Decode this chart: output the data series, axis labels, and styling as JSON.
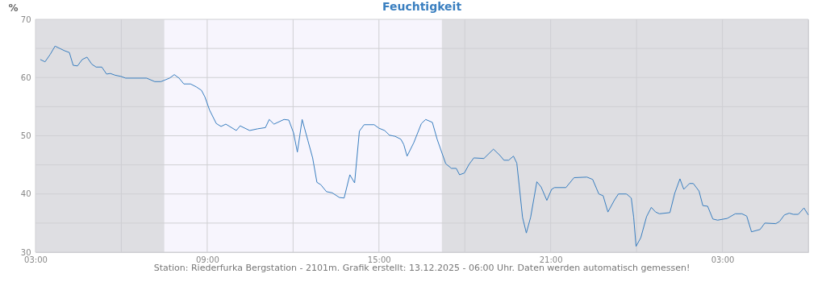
{
  "chart_data": {
    "type": "line",
    "title": "Feuchtigkeit",
    "ylabel": "%",
    "annotations": [
      "Station: Riederfurka Bergstation - 2101m. Grafik erstellt: 13.12.2025 - 06:00 Uhr. Daten werden automatisch gemessen!"
    ],
    "xlim": [
      "2025-12-12T03:00",
      "2025-12-13T06:00"
    ],
    "xticks": [
      {
        "value": "2025-12-12T03:00",
        "label": "03:00"
      },
      {
        "value": "2025-12-12T06:00",
        "label": null
      },
      {
        "value": "2025-12-12T09:00",
        "label": "09:00"
      },
      {
        "value": "2025-12-12T12:00",
        "label": null
      },
      {
        "value": "2025-12-12T15:00",
        "label": "15:00"
      },
      {
        "value": "2025-12-12T18:00",
        "label": null
      },
      {
        "value": "2025-12-12T21:00",
        "label": "21:00"
      },
      {
        "value": "2025-12-13T00:00",
        "label": null
      },
      {
        "value": "2025-12-13T03:00",
        "label": "03:00"
      },
      {
        "value": "2025-12-13T06:00",
        "label": null
      }
    ],
    "ylim": [
      30,
      70
    ],
    "yticks": [
      30,
      {
        "value": 35,
        "label": null
      },
      40,
      {
        "value": 45,
        "label": null
      },
      50,
      {
        "value": 55,
        "label": null
      },
      60,
      {
        "value": 65,
        "label": null
      },
      70
    ],
    "grid": true,
    "bands": [
      {
        "axis": "x",
        "from": "2025-12-12T07:30",
        "to": "2025-12-12T17:12",
        "color": "#f7f5fd"
      }
    ],
    "series": [
      {
        "color": "#3a7fc0",
        "x": [
          "2025-12-12T03:10",
          "2025-12-12T03:20",
          "2025-12-12T03:31",
          "2025-12-12T03:41",
          "2025-12-12T03:51",
          "2025-12-12T04:01",
          "2025-12-12T04:11",
          "2025-12-12T04:19",
          "2025-12-12T04:28",
          "2025-12-12T04:38",
          "2025-12-12T04:48",
          "2025-12-12T04:58",
          "2025-12-12T05:07",
          "2025-12-12T05:19",
          "2025-12-12T05:29",
          "2025-12-12T05:37",
          "2025-12-12T05:47",
          "2025-12-12T05:59",
          "2025-12-12T06:09",
          "2025-12-12T06:53",
          "2025-12-12T07:10",
          "2025-12-12T07:23",
          "2025-12-12T07:41",
          "2025-12-12T07:51",
          "2025-12-12T08:01",
          "2025-12-12T08:11",
          "2025-12-12T08:25",
          "2025-12-12T08:37",
          "2025-12-12T08:48",
          "2025-12-12T08:55",
          "2025-12-12T09:05",
          "2025-12-12T09:19",
          "2025-12-12T09:29",
          "2025-12-12T09:39",
          "2025-12-12T10:01",
          "2025-12-12T10:09",
          "2025-12-12T10:29",
          "2025-12-12T10:46",
          "2025-12-12T11:02",
          "2025-12-12T11:10",
          "2025-12-12T11:20",
          "2025-12-12T11:41",
          "2025-12-12T11:51",
          "2025-12-12T12:01",
          "2025-12-12T12:09",
          "2025-12-12T12:14",
          "2025-12-12T12:19",
          "2025-12-12T12:31",
          "2025-12-12T12:41",
          "2025-12-12T12:50",
          "2025-12-12T12:58",
          "2025-12-12T13:10",
          "2025-12-12T13:22",
          "2025-12-12T13:37",
          "2025-12-12T13:47",
          "2025-12-12T13:59",
          "2025-12-12T14:09",
          "2025-12-12T14:19",
          "2025-12-12T14:29",
          "2025-12-12T14:50",
          "2025-12-12T15:00",
          "2025-12-12T15:12",
          "2025-12-12T15:22",
          "2025-12-12T15:34",
          "2025-12-12T15:46",
          "2025-12-12T15:52",
          "2025-12-12T15:59",
          "2025-12-12T16:13",
          "2025-12-12T16:29",
          "2025-12-12T16:38",
          "2025-12-12T16:52",
          "2025-12-12T17:02",
          "2025-12-12T17:20",
          "2025-12-12T17:32",
          "2025-12-12T17:42",
          "2025-12-12T17:49",
          "2025-12-12T17:59",
          "2025-12-12T18:09",
          "2025-12-12T18:19",
          "2025-12-12T18:40",
          "2025-12-12T19:00",
          "2025-12-12T19:14",
          "2025-12-12T19:22",
          "2025-12-12T19:32",
          "2025-12-12T19:42",
          "2025-12-12T19:49",
          "2025-12-12T19:54",
          "2025-12-12T20:01",
          "2025-12-12T20:09",
          "2025-12-12T20:18",
          "2025-12-12T20:31",
          "2025-12-12T20:40",
          "2025-12-12T20:52",
          "2025-12-12T21:02",
          "2025-12-12T21:08",
          "2025-12-12T21:32",
          "2025-12-12T21:49",
          "2025-12-12T22:16",
          "2025-12-12T22:28",
          "2025-12-12T22:41",
          "2025-12-12T22:50",
          "2025-12-12T23:00",
          "2025-12-12T23:14",
          "2025-12-12T23:22",
          "2025-12-12T23:39",
          "2025-12-12T23:49",
          "2025-12-12T23:54",
          "2025-12-12T23:59",
          "2025-12-13T00:09",
          "2025-12-13T00:21",
          "2025-12-13T00:31",
          "2025-12-13T00:40",
          "2025-12-13T00:48",
          "2025-12-13T01:10",
          "2025-12-13T01:20",
          "2025-12-13T01:31",
          "2025-12-13T01:39",
          "2025-12-13T01:51",
          "2025-12-13T01:59",
          "2025-12-13T02:11",
          "2025-12-13T02:19",
          "2025-12-13T02:29",
          "2025-12-13T02:40",
          "2025-12-13T02:50",
          "2025-12-13T03:10",
          "2025-12-13T03:27",
          "2025-12-13T03:41",
          "2025-12-13T03:51",
          "2025-12-13T04:01",
          "2025-12-13T04:19",
          "2025-12-13T04:29",
          "2025-12-13T04:52",
          "2025-12-13T05:00",
          "2025-12-13T05:10",
          "2025-12-13T05:20",
          "2025-12-13T05:29",
          "2025-12-13T05:39",
          "2025-12-13T05:51",
          "2025-12-13T06:00"
        ],
        "values": [
          63.1,
          62.7,
          64.0,
          65.4,
          65.0,
          64.6,
          64.3,
          62.1,
          62.0,
          63.1,
          63.5,
          62.3,
          61.8,
          61.8,
          60.6,
          60.7,
          60.4,
          60.2,
          59.9,
          59.9,
          59.3,
          59.3,
          59.9,
          60.5,
          59.9,
          58.9,
          58.9,
          58.4,
          57.8,
          56.7,
          54.4,
          52.1,
          51.6,
          52.0,
          50.9,
          51.7,
          50.9,
          51.2,
          51.4,
          52.8,
          52.0,
          52.8,
          52.7,
          50.5,
          47.2,
          50.0,
          52.8,
          49.2,
          46.2,
          42.0,
          41.6,
          40.4,
          40.2,
          39.4,
          39.3,
          43.3,
          41.9,
          50.8,
          51.9,
          51.9,
          51.3,
          50.9,
          50.1,
          49.9,
          49.4,
          48.5,
          46.5,
          48.8,
          52.1,
          52.8,
          52.3,
          49.4,
          45.2,
          44.4,
          44.4,
          43.3,
          43.6,
          45.1,
          46.2,
          46.1,
          47.7,
          46.6,
          45.8,
          45.8,
          46.5,
          45.3,
          41.5,
          36.0,
          33.3,
          36.0,
          42.1,
          41.2,
          38.9,
          40.8,
          41.1,
          41.1,
          42.8,
          42.9,
          42.5,
          40.0,
          39.7,
          36.9,
          39.0,
          40.0,
          40.0,
          39.3,
          36.0,
          31.0,
          32.5,
          36.1,
          37.7,
          36.9,
          36.6,
          36.8,
          40.1,
          42.6,
          40.8,
          41.8,
          41.8,
          40.5,
          38.0,
          37.9,
          35.7,
          35.5,
          35.8,
          36.6,
          36.6,
          36.2,
          33.5,
          33.9,
          35.0,
          34.9,
          35.3,
          36.4,
          36.7,
          36.5,
          36.5,
          37.6,
          36.4
        ]
      }
    ]
  }
}
